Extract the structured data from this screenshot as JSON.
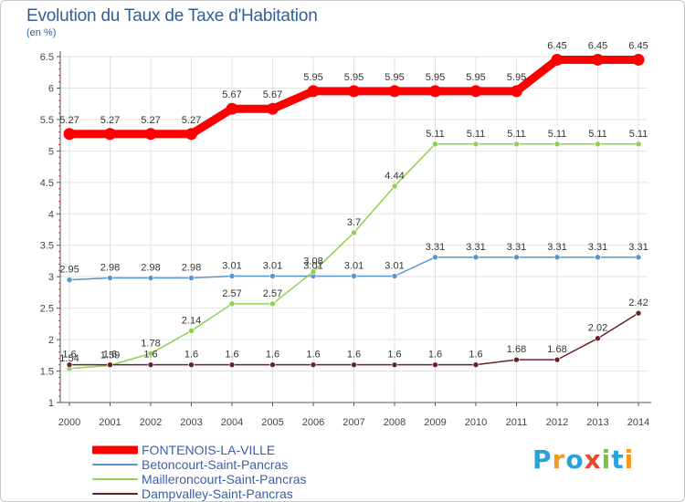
{
  "header": {
    "title": "Evolution du Taux de Taxe d'Habitation",
    "unit": "(en %)"
  },
  "brand": {
    "name": "Proxiti",
    "letters": [
      "P",
      "r",
      "o",
      "x",
      "i",
      "t",
      "i"
    ],
    "letter_colors": [
      "#2aa3d8",
      "#f39a1a",
      "#2aa3d8",
      "#e8492e",
      "#7cc142",
      "#2aa3d8",
      "#f39a1a"
    ]
  },
  "chart_data": {
    "type": "line",
    "title": "Evolution du Taux de Taxe d'Habitation",
    "ylabel": "(en %)",
    "xlabel": "",
    "x": [
      2000,
      2001,
      2002,
      2003,
      2004,
      2005,
      2006,
      2007,
      2008,
      2009,
      2010,
      2011,
      2012,
      2013,
      2014
    ],
    "ylim": [
      1,
      6.5
    ],
    "yticks": [
      1,
      1.5,
      2,
      2.5,
      3,
      3.5,
      4,
      4.5,
      5,
      5.5,
      6,
      6.5
    ],
    "grid": true,
    "legend_position": "bottom-left",
    "series": [
      {
        "name": "FONTENOIS-LA-VILLE",
        "color": "#ff0000",
        "emphasis": true,
        "values": [
          5.27,
          5.27,
          5.27,
          5.27,
          5.67,
          5.67,
          5.95,
          5.95,
          5.95,
          5.95,
          5.95,
          5.95,
          6.45,
          6.45,
          6.45
        ],
        "labels": [
          "5.27",
          "5.27",
          "5.27",
          "5.27",
          "5.67",
          "5.67",
          "5.95",
          "5.95",
          "5.95",
          "5.95",
          "5.95",
          "5.95",
          "6.45",
          "6.45",
          "6.45"
        ]
      },
      {
        "name": "Betoncourt-Saint-Pancras",
        "color": "#5a95cc",
        "emphasis": false,
        "values": [
          2.95,
          2.98,
          2.98,
          2.98,
          3.01,
          3.01,
          3.01,
          3.01,
          3.01,
          3.31,
          3.31,
          3.31,
          3.31,
          3.31,
          3.31
        ],
        "labels": [
          "2.95",
          "2.98",
          "2.98",
          "2.98",
          "3.01",
          "3.01",
          "3.01",
          "3.01",
          "3.01",
          "3.31",
          "3.31",
          "3.31",
          "3.31",
          "3.31",
          "3.31"
        ]
      },
      {
        "name": "Mailleroncourt-Saint-Pancras",
        "color": "#8fd14f",
        "emphasis": false,
        "values": [
          1.54,
          1.59,
          1.78,
          2.14,
          2.57,
          2.57,
          3.08,
          3.7,
          4.44,
          5.11,
          5.11,
          5.11,
          5.11,
          5.11,
          5.11
        ],
        "labels": [
          "1.54",
          "1.59",
          "1.78",
          "2.14",
          "2.57",
          "2.57",
          "3.08",
          "3.7",
          "4.44",
          "5.11",
          "5.11",
          "5.11",
          "5.11",
          "5.11",
          "5.11"
        ]
      },
      {
        "name": "Dampvalley-Saint-Pancras",
        "color": "#6b2024",
        "emphasis": false,
        "values": [
          1.6,
          1.6,
          1.6,
          1.6,
          1.6,
          1.6,
          1.6,
          1.6,
          1.6,
          1.6,
          1.6,
          1.68,
          1.68,
          2.02,
          2.42
        ],
        "labels": [
          "1.6",
          "1.6",
          "1.6",
          "1.6",
          "1.6",
          "1.6",
          "1.6",
          "1.6",
          "1.6",
          "1.6",
          "1.6",
          "1.68",
          "1.68",
          "2.02",
          "2.42"
        ]
      }
    ]
  }
}
